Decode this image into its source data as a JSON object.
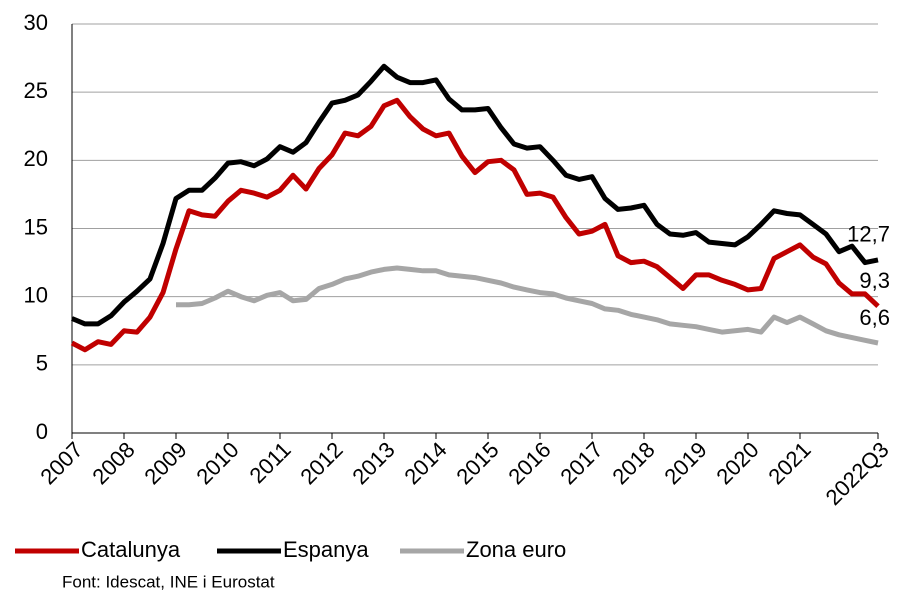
{
  "chart_data": {
    "type": "line",
    "source": "Font: Idescat, INE i Eurostat",
    "categories": [
      "2007",
      null,
      null,
      null,
      "2008",
      null,
      null,
      null,
      "2009",
      null,
      null,
      null,
      "2010",
      null,
      null,
      null,
      "2011",
      null,
      null,
      null,
      "2012",
      null,
      null,
      null,
      "2013",
      null,
      null,
      null,
      "2014",
      null,
      null,
      null,
      "2015",
      null,
      null,
      null,
      "2016",
      null,
      null,
      null,
      "2017",
      null,
      null,
      null,
      "2018",
      null,
      null,
      null,
      "2019",
      null,
      null,
      null,
      "2020",
      null,
      null,
      null,
      "2021",
      null,
      null,
      null,
      null,
      null,
      "2022Q3"
    ],
    "series": [
      {
        "name": "Catalunya",
        "color": "#c00000",
        "values": [
          6.6,
          6.1,
          6.7,
          6.5,
          7.5,
          7.4,
          8.5,
          10.3,
          13.5,
          16.3,
          16.0,
          15.9,
          17.0,
          17.8,
          17.6,
          17.3,
          17.8,
          18.9,
          17.9,
          19.4,
          20.4,
          22.0,
          21.8,
          22.5,
          24.0,
          24.4,
          23.2,
          22.3,
          21.8,
          22.0,
          20.3,
          19.1,
          19.9,
          20.0,
          19.3,
          17.5,
          17.6,
          17.3,
          15.8,
          14.6,
          14.8,
          15.3,
          13.0,
          12.5,
          12.6,
          12.2,
          11.4,
          10.6,
          11.6,
          11.6,
          11.2,
          10.9,
          10.5,
          10.6,
          12.8,
          13.3,
          13.8,
          12.9,
          12.4,
          11.0,
          10.2,
          10.2,
          9.3
        ],
        "value_labels": [
          null,
          null,
          null,
          null,
          null,
          null,
          null,
          null,
          null,
          null,
          null,
          null,
          null,
          null,
          null,
          null,
          null,
          null,
          null,
          null,
          null,
          null,
          null,
          null,
          null,
          null,
          null,
          null,
          null,
          null,
          null,
          null,
          null,
          null,
          null,
          null,
          null,
          null,
          null,
          null,
          null,
          null,
          null,
          null,
          null,
          null,
          null,
          null,
          null,
          null,
          null,
          null,
          null,
          null,
          null,
          null,
          null,
          null,
          null,
          null,
          null,
          null,
          "9,3"
        ]
      },
      {
        "name": "Espanya",
        "color": "#000000",
        "values": [
          8.4,
          8.0,
          8.0,
          8.6,
          9.6,
          10.4,
          11.3,
          13.9,
          17.2,
          17.8,
          17.8,
          18.7,
          19.8,
          19.9,
          19.6,
          20.1,
          21.0,
          20.6,
          21.3,
          22.8,
          24.2,
          24.4,
          24.8,
          25.8,
          26.9,
          26.1,
          25.7,
          25.7,
          25.9,
          24.5,
          23.7,
          23.7,
          23.8,
          22.4,
          21.2,
          20.9,
          21.0,
          20.0,
          18.9,
          18.6,
          18.8,
          17.2,
          16.4,
          16.5,
          16.7,
          15.3,
          14.6,
          14.5,
          14.7,
          14.0,
          13.9,
          13.8,
          14.4,
          15.3,
          16.3,
          16.1,
          16.0,
          15.3,
          14.6,
          13.3,
          13.7,
          12.5,
          12.7
        ],
        "value_labels": [
          null,
          null,
          null,
          null,
          null,
          null,
          null,
          null,
          null,
          null,
          null,
          null,
          null,
          null,
          null,
          null,
          null,
          null,
          null,
          null,
          null,
          null,
          null,
          null,
          null,
          null,
          null,
          null,
          null,
          null,
          null,
          null,
          null,
          null,
          null,
          null,
          null,
          null,
          null,
          null,
          null,
          null,
          null,
          null,
          null,
          null,
          null,
          null,
          null,
          null,
          null,
          null,
          null,
          null,
          null,
          null,
          null,
          null,
          null,
          null,
          null,
          null,
          "12,7"
        ]
      },
      {
        "name": "Zona euro",
        "color": "#a6a6a6",
        "values": [
          null,
          null,
          null,
          null,
          null,
          null,
          null,
          null,
          9.4,
          9.4,
          9.5,
          9.9,
          10.4,
          10.0,
          9.7,
          10.1,
          10.3,
          9.7,
          9.8,
          10.6,
          10.9,
          11.3,
          11.5,
          11.8,
          12.0,
          12.1,
          12.0,
          11.9,
          11.9,
          11.6,
          11.5,
          11.4,
          11.2,
          11.0,
          10.7,
          10.5,
          10.3,
          10.2,
          9.9,
          9.7,
          9.5,
          9.1,
          9.0,
          8.7,
          8.5,
          8.3,
          8.0,
          7.9,
          7.8,
          7.6,
          7.4,
          7.5,
          7.6,
          7.4,
          8.5,
          8.1,
          8.5,
          8.0,
          7.5,
          7.2,
          7.0,
          6.8,
          6.6
        ],
        "value_labels": [
          null,
          null,
          null,
          null,
          null,
          null,
          null,
          null,
          null,
          null,
          null,
          null,
          null,
          null,
          null,
          null,
          null,
          null,
          null,
          null,
          null,
          null,
          null,
          null,
          null,
          null,
          null,
          null,
          null,
          null,
          null,
          null,
          null,
          null,
          null,
          null,
          null,
          null,
          null,
          null,
          null,
          null,
          null,
          null,
          null,
          null,
          null,
          null,
          null,
          null,
          null,
          null,
          null,
          null,
          null,
          null,
          null,
          null,
          null,
          null,
          null,
          null,
          "6,6"
        ]
      }
    ],
    "ylim": [
      0,
      30
    ],
    "yticks": [
      0,
      5,
      10,
      15,
      20,
      25,
      30
    ],
    "grid": true,
    "legend": "bottom"
  }
}
